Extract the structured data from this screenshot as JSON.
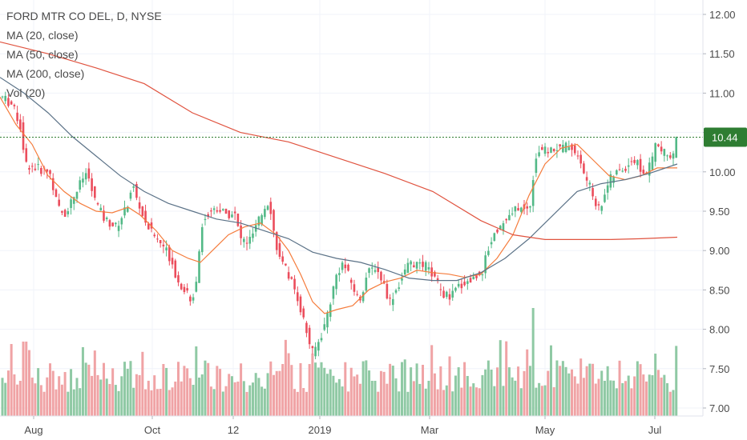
{
  "legend": {
    "line1": "FORD MTR CO DEL, D, NYSE",
    "line2": "MA (20, close)",
    "line3": "MA (50, close)",
    "line4": "MA (200, close)",
    "line5": "Vol (20)"
  },
  "chart_data": {
    "type": "candlestick",
    "title": "FORD MTR CO DEL, D, NYSE",
    "y_axis_ticks": [
      "7.00",
      "7.50",
      "8.00",
      "8.50",
      "9.00",
      "9.50",
      "10.00",
      "10.50",
      "11.00",
      "11.50",
      "12.00"
    ],
    "x_axis_ticks": [
      "Aug",
      "Oct",
      "12",
      "2019",
      "Mar",
      "May",
      "Jul"
    ],
    "ylim": [
      7.0,
      12.15
    ],
    "last_price": "10.44",
    "colors": {
      "up": "#53b987",
      "down": "#eb4d5c",
      "up_volume": "#8fc9a4",
      "down_volume": "#f0a3a5",
      "ma20": "#f57c3c",
      "ma50": "#5b7287",
      "ma200": "#e0533f",
      "price_tag": "#2e7d32",
      "grid": "#f0f3fa"
    },
    "series": [
      {
        "name": "MA (20, close)",
        "points": [
          [
            0,
            10.95
          ],
          [
            20,
            10.6
          ],
          [
            40,
            10.35
          ],
          [
            60,
            9.95
          ],
          [
            80,
            9.75
          ],
          [
            100,
            9.6
          ],
          [
            120,
            9.5
          ],
          [
            140,
            9.48
          ],
          [
            160,
            9.55
          ],
          [
            175,
            9.45
          ],
          [
            195,
            9.25
          ],
          [
            215,
            9.0
          ],
          [
            235,
            8.9
          ],
          [
            250,
            8.85
          ],
          [
            265,
            9.0
          ],
          [
            285,
            9.2
          ],
          [
            305,
            9.3
          ],
          [
            325,
            9.35
          ],
          [
            345,
            9.2
          ],
          [
            360,
            9.0
          ],
          [
            375,
            8.7
          ],
          [
            390,
            8.35
          ],
          [
            405,
            8.2
          ],
          [
            420,
            8.25
          ],
          [
            440,
            8.3
          ],
          [
            460,
            8.5
          ],
          [
            480,
            8.6
          ],
          [
            500,
            8.65
          ],
          [
            520,
            8.75
          ],
          [
            540,
            8.72
          ],
          [
            560,
            8.7
          ],
          [
            580,
            8.66
          ],
          [
            600,
            8.7
          ],
          [
            620,
            8.9
          ],
          [
            640,
            9.2
          ],
          [
            660,
            9.7
          ],
          [
            680,
            10.1
          ],
          [
            700,
            10.3
          ],
          [
            720,
            10.35
          ],
          [
            740,
            10.15
          ],
          [
            760,
            9.95
          ],
          [
            780,
            9.9
          ],
          [
            800,
            9.95
          ],
          [
            820,
            10.05
          ],
          [
            845,
            10.05
          ]
        ]
      },
      {
        "name": "MA (50, close)",
        "points": [
          [
            0,
            11.2
          ],
          [
            30,
            11.0
          ],
          [
            60,
            10.75
          ],
          [
            90,
            10.45
          ],
          [
            120,
            10.2
          ],
          [
            150,
            9.95
          ],
          [
            180,
            9.75
          ],
          [
            210,
            9.6
          ],
          [
            240,
            9.5
          ],
          [
            270,
            9.4
          ],
          [
            300,
            9.35
          ],
          [
            330,
            9.25
          ],
          [
            360,
            9.15
          ],
          [
            390,
            8.98
          ],
          [
            420,
            8.9
          ],
          [
            450,
            8.85
          ],
          [
            480,
            8.76
          ],
          [
            510,
            8.65
          ],
          [
            540,
            8.62
          ],
          [
            570,
            8.62
          ],
          [
            600,
            8.72
          ],
          [
            630,
            8.9
          ],
          [
            660,
            9.15
          ],
          [
            690,
            9.45
          ],
          [
            720,
            9.75
          ],
          [
            750,
            9.85
          ],
          [
            780,
            9.9
          ],
          [
            810,
            9.98
          ],
          [
            845,
            10.1
          ]
        ]
      },
      {
        "name": "MA (200, close)",
        "points": [
          [
            0,
            11.65
          ],
          [
            60,
            11.5
          ],
          [
            120,
            11.32
          ],
          [
            180,
            11.12
          ],
          [
            240,
            10.75
          ],
          [
            300,
            10.5
          ],
          [
            360,
            10.38
          ],
          [
            420,
            10.18
          ],
          [
            480,
            9.98
          ],
          [
            540,
            9.75
          ],
          [
            600,
            9.38
          ],
          [
            640,
            9.2
          ],
          [
            680,
            9.14
          ],
          [
            720,
            9.14
          ],
          [
            760,
            9.14
          ],
          [
            800,
            9.15
          ],
          [
            845,
            9.17
          ]
        ]
      }
    ]
  }
}
